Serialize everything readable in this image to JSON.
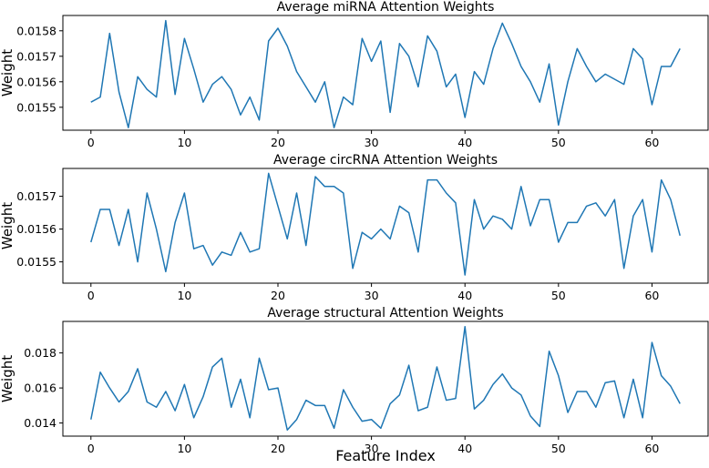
{
  "figure": {
    "xlabel": "Feature Index"
  },
  "chart_data": [
    {
      "type": "line",
      "title": "Average miRNA Attention Weights",
      "xlabel": "",
      "ylabel": "Weight",
      "xlim": [
        -3,
        66
      ],
      "ylim": [
        0.01541,
        0.01586
      ],
      "xticks": [
        0,
        10,
        20,
        30,
        40,
        50,
        60
      ],
      "yticks": [
        0.0155,
        0.0156,
        0.0157,
        0.0158
      ],
      "ytick_labels": [
        "0.0155",
        "0.0156",
        "0.0157",
        "0.0158"
      ],
      "color": "#1f77b4",
      "x_start": 0,
      "values": [
        0.01552,
        0.01554,
        0.01579,
        0.01556,
        0.01542,
        0.01562,
        0.01557,
        0.01554,
        0.01584,
        0.01555,
        0.01577,
        0.01565,
        0.01552,
        0.01559,
        0.01562,
        0.01557,
        0.01547,
        0.01554,
        0.01545,
        0.01576,
        0.01581,
        0.01574,
        0.01564,
        0.01558,
        0.01552,
        0.0156,
        0.01542,
        0.01554,
        0.01551,
        0.01577,
        0.01568,
        0.01576,
        0.01548,
        0.01575,
        0.0157,
        0.01558,
        0.01578,
        0.01572,
        0.01558,
        0.01563,
        0.01546,
        0.01564,
        0.01559,
        0.01573,
        0.01583,
        0.01575,
        0.01566,
        0.0156,
        0.01552,
        0.01567,
        0.01543,
        0.0156,
        0.01573,
        0.01566,
        0.0156,
        0.01563,
        0.01561,
        0.01559,
        0.01573,
        0.01569,
        0.01551,
        0.01566,
        0.01566,
        0.01573
      ]
    },
    {
      "type": "line",
      "title": "Average circRNA Attention Weights",
      "xlabel": "",
      "ylabel": "Weight",
      "xlim": [
        -3,
        66
      ],
      "ylim": [
        0.015435,
        0.015785
      ],
      "xticks": [
        0,
        10,
        20,
        30,
        40,
        50,
        60
      ],
      "yticks": [
        0.0155,
        0.0156,
        0.0157
      ],
      "ytick_labels": [
        "0.0155",
        "0.0156",
        "0.0157"
      ],
      "color": "#1f77b4",
      "x_start": 0,
      "values": [
        0.01556,
        0.01566,
        0.01566,
        0.01555,
        0.01566,
        0.0155,
        0.01571,
        0.0156,
        0.01547,
        0.01562,
        0.01571,
        0.01554,
        0.01555,
        0.01549,
        0.01553,
        0.01552,
        0.01559,
        0.01553,
        0.01554,
        0.01577,
        0.01567,
        0.01557,
        0.01571,
        0.01555,
        0.01576,
        0.01573,
        0.01573,
        0.01571,
        0.01548,
        0.01559,
        0.01557,
        0.0156,
        0.01557,
        0.01567,
        0.01565,
        0.01553,
        0.01575,
        0.01575,
        0.01571,
        0.01568,
        0.01546,
        0.01569,
        0.0156,
        0.01564,
        0.01563,
        0.0156,
        0.01573,
        0.01561,
        0.01569,
        0.01569,
        0.01556,
        0.01562,
        0.01562,
        0.01567,
        0.01568,
        0.01564,
        0.01569,
        0.01548,
        0.01564,
        0.01569,
        0.01553,
        0.01575,
        0.01569,
        0.01558
      ]
    },
    {
      "type": "line",
      "title": "Average structural Attention Weights",
      "xlabel": "",
      "ylabel": "Weight",
      "xlim": [
        -3,
        66
      ],
      "ylim": [
        0.01325,
        0.0198
      ],
      "xticks": [
        0,
        10,
        20,
        30,
        40,
        50,
        60
      ],
      "yticks": [
        0.014,
        0.016,
        0.018
      ],
      "ytick_labels": [
        "0.014",
        "0.016",
        "0.018"
      ],
      "color": "#1f77b4",
      "x_start": 0,
      "values": [
        0.0142,
        0.0169,
        0.016,
        0.0152,
        0.0158,
        0.0171,
        0.0152,
        0.0149,
        0.0158,
        0.0147,
        0.0162,
        0.0143,
        0.0155,
        0.0172,
        0.0177,
        0.0149,
        0.0165,
        0.0143,
        0.0177,
        0.0159,
        0.016,
        0.0136,
        0.0142,
        0.0153,
        0.015,
        0.015,
        0.0137,
        0.0159,
        0.0149,
        0.0141,
        0.0142,
        0.0137,
        0.0151,
        0.0156,
        0.0173,
        0.0147,
        0.0149,
        0.0172,
        0.0153,
        0.0154,
        0.0195,
        0.0148,
        0.0153,
        0.0162,
        0.0168,
        0.016,
        0.0156,
        0.0144,
        0.0138,
        0.0181,
        0.0167,
        0.0146,
        0.0158,
        0.0158,
        0.0149,
        0.0163,
        0.0164,
        0.0143,
        0.0165,
        0.0143,
        0.0186,
        0.0167,
        0.0161,
        0.0151
      ]
    }
  ]
}
